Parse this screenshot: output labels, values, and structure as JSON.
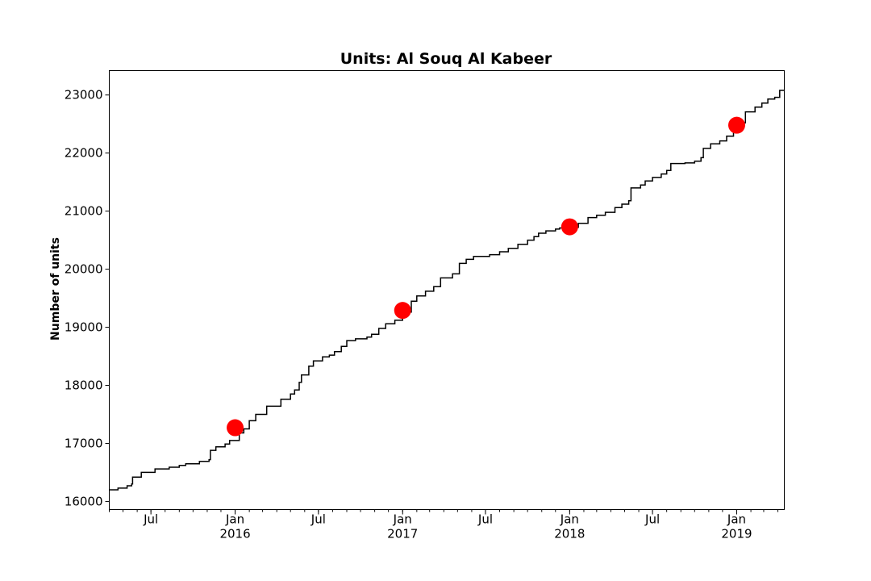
{
  "chart_data": {
    "type": "line",
    "title": "Units: Al Souq Al Kabeer",
    "xlabel": "",
    "ylabel": "Number of units",
    "xlim": [
      "2015-04-01",
      "2019-04-15"
    ],
    "ylim": [
      15860,
      23420
    ],
    "grid": false,
    "legend": "none",
    "y_ticks": [
      16000,
      17000,
      18000,
      19000,
      20000,
      21000,
      22000,
      23000
    ],
    "x_ticks": [
      {
        "date": "2015-07-01",
        "label": "Jul",
        "sublabel": ""
      },
      {
        "date": "2016-01-01",
        "label": "Jan",
        "sublabel": "2016"
      },
      {
        "date": "2016-07-01",
        "label": "Jul",
        "sublabel": ""
      },
      {
        "date": "2017-01-01",
        "label": "Jan",
        "sublabel": "2017"
      },
      {
        "date": "2017-07-01",
        "label": "Jul",
        "sublabel": ""
      },
      {
        "date": "2018-01-01",
        "label": "Jan",
        "sublabel": "2018"
      },
      {
        "date": "2018-07-01",
        "label": "Jul",
        "sublabel": ""
      },
      {
        "date": "2019-01-01",
        "label": "Jan",
        "sublabel": "2019"
      }
    ],
    "series": [
      {
        "color": "#000000",
        "step": true,
        "points": [
          [
            "2015-04-01",
            16200
          ],
          [
            "2015-04-20",
            16230
          ],
          [
            "2015-05-10",
            16270
          ],
          [
            "2015-05-20",
            16300
          ],
          [
            "2015-05-22",
            16420
          ],
          [
            "2015-06-10",
            16500
          ],
          [
            "2015-07-10",
            16560
          ],
          [
            "2015-08-10",
            16590
          ],
          [
            "2015-09-01",
            16620
          ],
          [
            "2015-09-15",
            16650
          ],
          [
            "2015-10-15",
            16690
          ],
          [
            "2015-11-05",
            16720
          ],
          [
            "2015-11-08",
            16880
          ],
          [
            "2015-11-20",
            16940
          ],
          [
            "2015-12-10",
            16990
          ],
          [
            "2015-12-20",
            17050
          ],
          [
            "2016-01-10",
            17180
          ],
          [
            "2016-01-20",
            17250
          ],
          [
            "2016-02-01",
            17390
          ],
          [
            "2016-02-15",
            17500
          ],
          [
            "2016-03-10",
            17640
          ],
          [
            "2016-04-10",
            17760
          ],
          [
            "2016-05-01",
            17850
          ],
          [
            "2016-05-10",
            17920
          ],
          [
            "2016-05-20",
            18050
          ],
          [
            "2016-05-25",
            18180
          ],
          [
            "2016-06-10",
            18330
          ],
          [
            "2016-06-20",
            18420
          ],
          [
            "2016-07-10",
            18490
          ],
          [
            "2016-07-25",
            18520
          ],
          [
            "2016-08-05",
            18580
          ],
          [
            "2016-08-20",
            18670
          ],
          [
            "2016-09-01",
            18770
          ],
          [
            "2016-09-20",
            18800
          ],
          [
            "2016-10-15",
            18830
          ],
          [
            "2016-10-25",
            18880
          ],
          [
            "2016-11-10",
            18980
          ],
          [
            "2016-11-25",
            19060
          ],
          [
            "2016-12-15",
            19120
          ],
          [
            "2017-01-01",
            19260
          ],
          [
            "2017-01-20",
            19450
          ],
          [
            "2017-02-01",
            19540
          ],
          [
            "2017-02-20",
            19620
          ],
          [
            "2017-03-10",
            19700
          ],
          [
            "2017-03-25",
            19850
          ],
          [
            "2017-04-20",
            19920
          ],
          [
            "2017-05-05",
            20100
          ],
          [
            "2017-05-20",
            20170
          ],
          [
            "2017-06-05",
            20220
          ],
          [
            "2017-07-10",
            20250
          ],
          [
            "2017-08-01",
            20300
          ],
          [
            "2017-08-20",
            20360
          ],
          [
            "2017-09-10",
            20430
          ],
          [
            "2017-10-01",
            20500
          ],
          [
            "2017-10-15",
            20560
          ],
          [
            "2017-10-25",
            20620
          ],
          [
            "2017-11-10",
            20660
          ],
          [
            "2017-12-01",
            20690
          ],
          [
            "2017-12-10",
            20710
          ],
          [
            "2018-01-01",
            20720
          ],
          [
            "2018-01-20",
            20790
          ],
          [
            "2018-02-10",
            20890
          ],
          [
            "2018-03-01",
            20930
          ],
          [
            "2018-03-20",
            20980
          ],
          [
            "2018-04-10",
            21060
          ],
          [
            "2018-04-25",
            21120
          ],
          [
            "2018-05-10",
            21180
          ],
          [
            "2018-05-15",
            21400
          ],
          [
            "2018-06-05",
            21450
          ],
          [
            "2018-06-15",
            21520
          ],
          [
            "2018-07-01",
            21580
          ],
          [
            "2018-07-20",
            21640
          ],
          [
            "2018-08-01",
            21700
          ],
          [
            "2018-08-10",
            21820
          ],
          [
            "2018-09-10",
            21830
          ],
          [
            "2018-10-01",
            21860
          ],
          [
            "2018-10-15",
            21920
          ],
          [
            "2018-10-20",
            22080
          ],
          [
            "2018-11-05",
            22160
          ],
          [
            "2018-11-25",
            22210
          ],
          [
            "2018-12-10",
            22290
          ],
          [
            "2018-12-25",
            22390
          ],
          [
            "2019-01-10",
            22520
          ],
          [
            "2019-01-20",
            22710
          ],
          [
            "2019-02-10",
            22790
          ],
          [
            "2019-02-25",
            22860
          ],
          [
            "2019-03-10",
            22930
          ],
          [
            "2019-03-25",
            22960
          ],
          [
            "2019-04-05",
            23080
          ],
          [
            "2019-04-15",
            23080
          ]
        ]
      }
    ],
    "markers": {
      "color": "#ff0000",
      "points": [
        [
          "2016-01-01",
          17270
        ],
        [
          "2017-01-01",
          19290
        ],
        [
          "2018-01-01",
          20730
        ],
        [
          "2019-01-01",
          22480
        ]
      ]
    }
  }
}
